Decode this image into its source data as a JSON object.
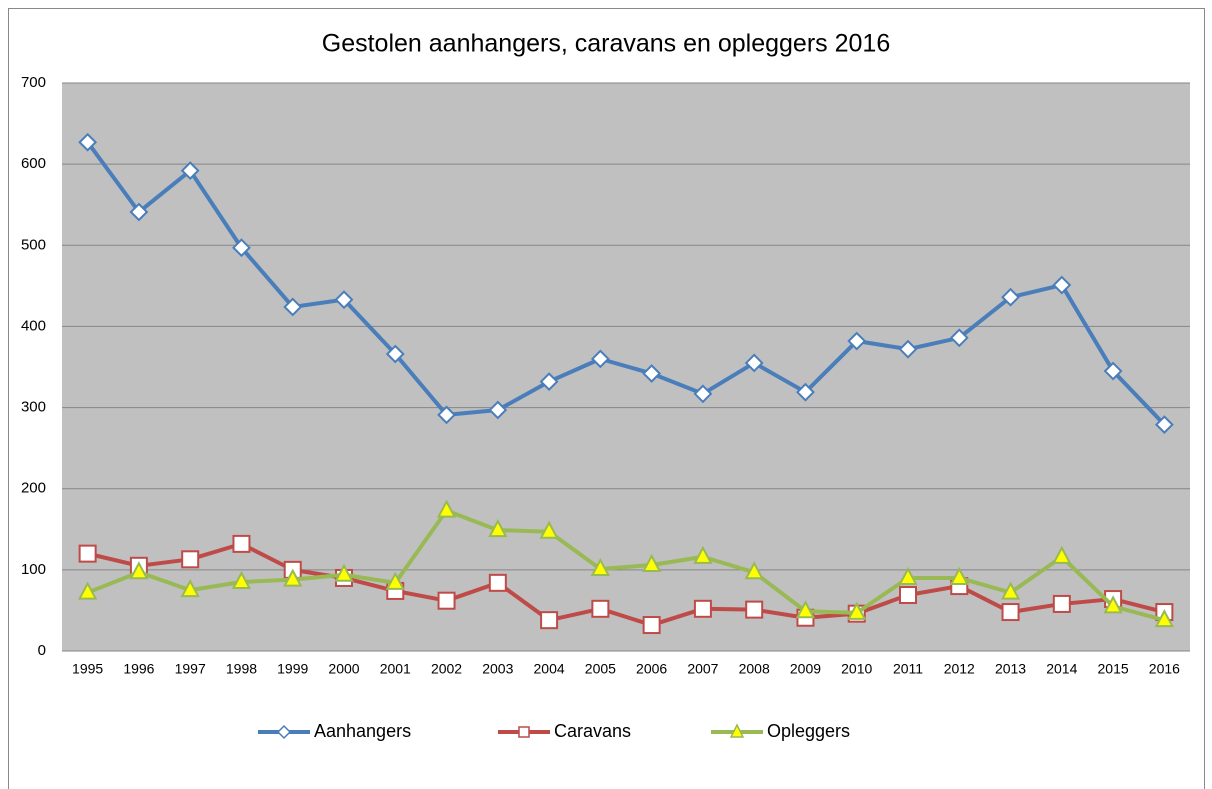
{
  "chart_data": {
    "type": "line",
    "title": "Gestolen aanhangers, caravans en opleggers 2016",
    "categories": [
      "1995",
      "1996",
      "1997",
      "1998",
      "1999",
      "2000",
      "2001",
      "2002",
      "2003",
      "2004",
      "2005",
      "2006",
      "2007",
      "2008",
      "2009",
      "2010",
      "2011",
      "2012",
      "2013",
      "2014",
      "2015",
      "2016"
    ],
    "series": [
      {
        "name": "Aanhangers",
        "color": "#4a7ebb",
        "marker": "diamond",
        "marker_fill": "#ffffff",
        "values": [
          627,
          541,
          592,
          497,
          424,
          433,
          366,
          291,
          297,
          332,
          360,
          342,
          317,
          355,
          319,
          382,
          372,
          386,
          436,
          451,
          345,
          279
        ]
      },
      {
        "name": "Caravans",
        "color": "#be4b48",
        "marker": "square",
        "marker_fill": "#ffffff",
        "values": [
          120,
          105,
          113,
          132,
          100,
          90,
          74,
          62,
          84,
          38,
          52,
          32,
          52,
          51,
          41,
          46,
          69,
          80,
          48,
          58,
          64,
          48
        ]
      },
      {
        "name": "Opleggers",
        "color": "#98b954",
        "marker": "triangle",
        "marker_fill": "#ffff00",
        "values": [
          72,
          97,
          75,
          85,
          88,
          94,
          84,
          173,
          149,
          147,
          101,
          106,
          116,
          97,
          49,
          47,
          90,
          90,
          72,
          116,
          55,
          38
        ]
      }
    ],
    "ylim": [
      0,
      700
    ],
    "yticks": [
      0,
      100,
      200,
      300,
      400,
      500,
      600,
      700
    ],
    "grid": true,
    "plot_background": "#c0c0c0",
    "legend": "bottom"
  }
}
